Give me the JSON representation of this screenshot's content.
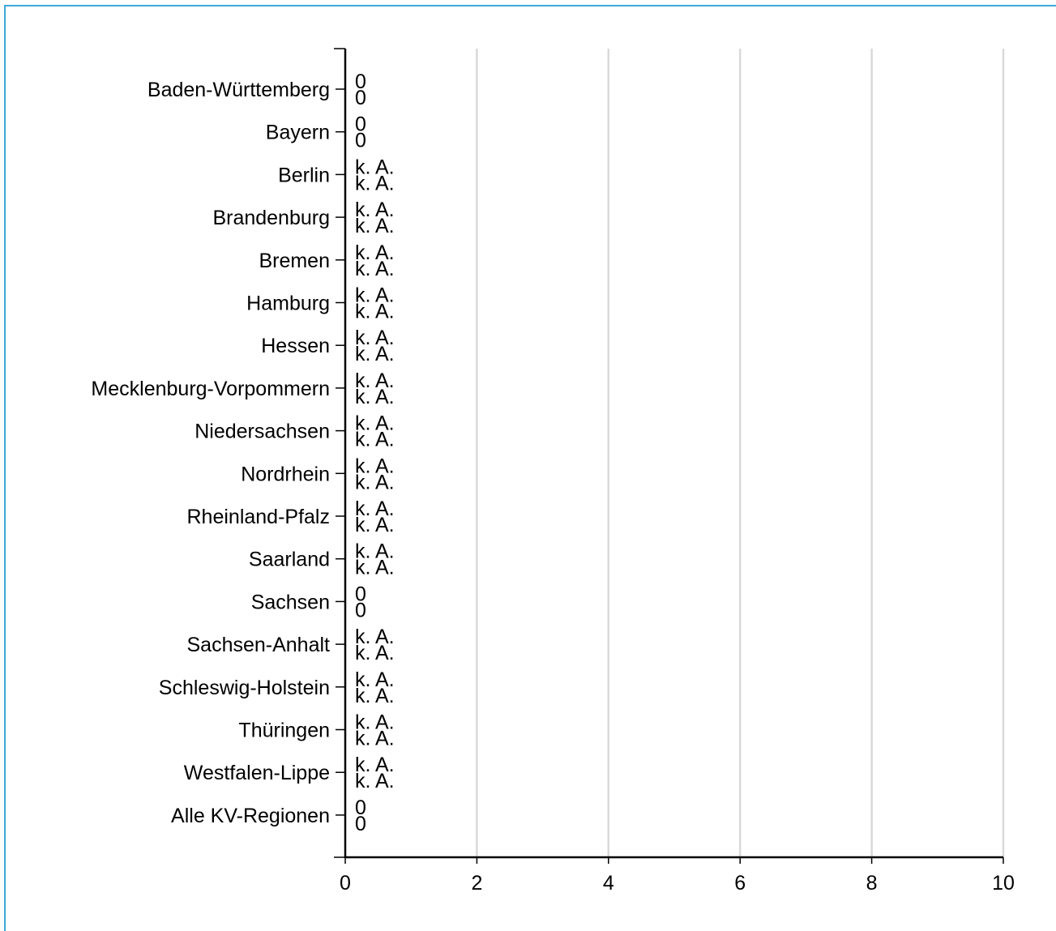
{
  "chart_data": {
    "type": "bar",
    "orientation": "horizontal",
    "title": "",
    "xlabel": "",
    "ylabel": "",
    "xlim": [
      0,
      10
    ],
    "xticks": [
      "0",
      "2",
      "4",
      "6",
      "8",
      "10"
    ],
    "grid": "vertical",
    "categories": [
      "Baden-Württemberg",
      "Bayern",
      "Berlin",
      "Brandenburg",
      "Bremen",
      "Hamburg",
      "Hessen",
      "Mecklenburg-Vorpommern",
      "Niedersachsen",
      "Nordrhein",
      "Rheinland-Pfalz",
      "Saarland",
      "Sachsen",
      "Sachsen-Anhalt",
      "Schleswig-Holstein",
      "Thüringen",
      "Westfalen-Lippe",
      "Alle KV-Regionen"
    ],
    "series": [
      {
        "values": [
          0,
          0,
          null,
          null,
          null,
          null,
          null,
          null,
          null,
          null,
          null,
          null,
          0,
          null,
          null,
          null,
          null,
          0
        ],
        "labels": [
          "0",
          "0",
          "k. A.",
          "k. A.",
          "k. A.",
          "k. A.",
          "k. A.",
          "k. A.",
          "k. A.",
          "k. A.",
          "k. A.",
          "k. A.",
          "0",
          "k. A.",
          "k. A.",
          "k. A.",
          "k. A.",
          "0"
        ]
      },
      {
        "values": [
          0,
          0,
          null,
          null,
          null,
          null,
          null,
          null,
          null,
          null,
          null,
          null,
          0,
          null,
          null,
          null,
          null,
          0
        ],
        "labels": [
          "0",
          "0",
          "k. A.",
          "k. A.",
          "k. A.",
          "k. A.",
          "k. A.",
          "k. A.",
          "k. A.",
          "k. A.",
          "k. A.",
          "k. A.",
          "0",
          "k. A.",
          "k. A.",
          "k. A.",
          "k. A.",
          "0"
        ]
      }
    ]
  }
}
